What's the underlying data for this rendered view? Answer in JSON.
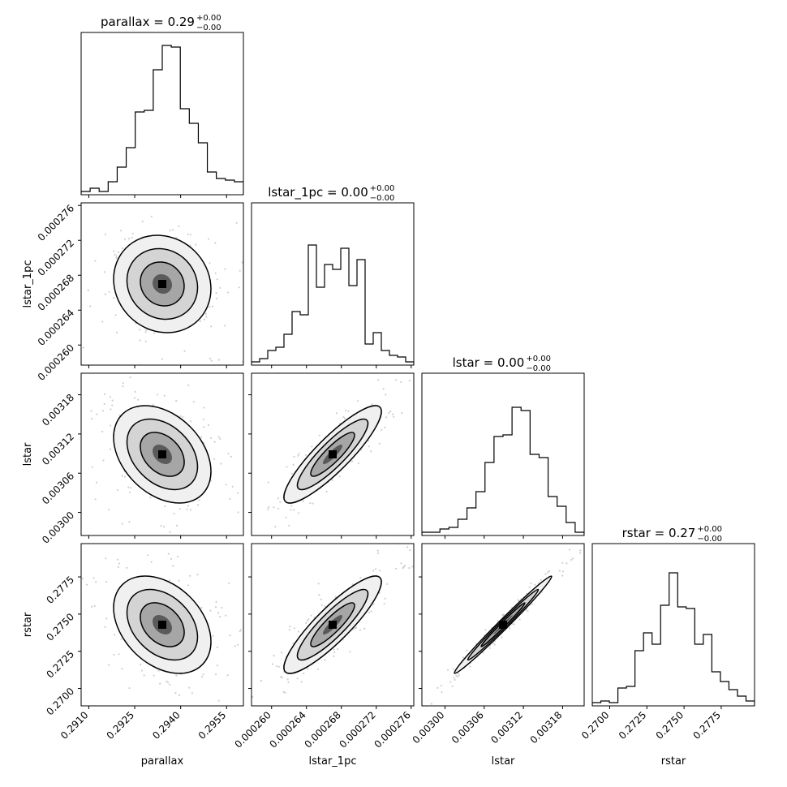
{
  "chart_data": {
    "type": "corner",
    "parameters": [
      "parallax",
      "lstar_1pc",
      "lstar",
      "rstar"
    ],
    "titles": [
      {
        "param": "parallax",
        "text": "parallax = 0.29",
        "upper": "+0.00",
        "lower": "−0.00"
      },
      {
        "param": "lstar_1pc",
        "text": "lstar_1pc = 0.00",
        "upper": "+0.00",
        "lower": "−0.00"
      },
      {
        "param": "lstar",
        "text": "lstar = 0.00",
        "upper": "+0.00",
        "lower": "−0.00"
      },
      {
        "param": "rstar",
        "text": "rstar = 0.27",
        "upper": "+0.00",
        "lower": "−0.00"
      }
    ],
    "ranges": [
      [
        0.29075,
        0.29605
      ],
      [
        0.0002577,
        0.0002763
      ],
      [
        0.0029647,
        0.003213
      ],
      [
        0.26883,
        0.27974
      ]
    ],
    "ticks": [
      {
        "values": [
          0.291,
          0.2925,
          0.294,
          0.2955
        ],
        "labels": [
          "0.2910",
          "0.2925",
          "0.2940",
          "0.2955"
        ]
      },
      {
        "values": [
          0.00026,
          0.000264,
          0.000268,
          0.000272,
          0.000276
        ],
        "labels": [
          "0.000260",
          "0.000264",
          "0.000268",
          "0.000272",
          "0.000276"
        ]
      },
      {
        "values": [
          0.003,
          0.00306,
          0.00312,
          0.00318
        ],
        "labels": [
          "0.00300",
          "0.00306",
          "0.00312",
          "0.00318"
        ]
      },
      {
        "values": [
          0.27,
          0.2725,
          0.275,
          0.2775
        ],
        "labels": [
          "0.2700",
          "0.2725",
          "0.2750",
          "0.2775"
        ]
      }
    ],
    "histograms": [
      [
        0.02,
        0.04,
        0.02,
        0.08,
        0.17,
        0.29,
        0.51,
        0.52,
        0.77,
        0.92,
        0.91,
        0.53,
        0.44,
        0.32,
        0.14,
        0.1,
        0.09,
        0.08
      ],
      [
        0.02,
        0.04,
        0.09,
        0.11,
        0.19,
        0.33,
        0.31,
        0.74,
        0.48,
        0.62,
        0.59,
        0.72,
        0.49,
        0.65,
        0.13,
        0.2,
        0.09,
        0.06,
        0.05,
        0.02
      ],
      [
        0.02,
        0.02,
        0.04,
        0.05,
        0.1,
        0.17,
        0.27,
        0.45,
        0.61,
        0.62,
        0.79,
        0.77,
        0.5,
        0.48,
        0.24,
        0.18,
        0.08,
        0.02
      ],
      [
        0.02,
        0.03,
        0.02,
        0.11,
        0.12,
        0.34,
        0.45,
        0.38,
        0.62,
        0.82,
        0.61,
        0.6,
        0.38,
        0.44,
        0.21,
        0.15,
        0.1,
        0.06,
        0.03
      ]
    ],
    "correlations": {
      "1-0": -0.1,
      "2-0": -0.35,
      "2-1": 0.88,
      "3-0": -0.35,
      "3-1": 0.88,
      "3-2": 0.99
    },
    "axis_labels": [
      "parallax",
      "lstar_1pc",
      "lstar",
      "rstar"
    ]
  }
}
